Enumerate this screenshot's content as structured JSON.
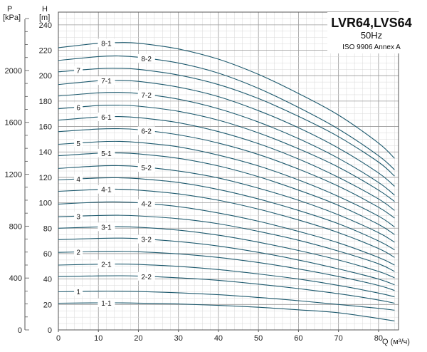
{
  "chart_data": {
    "type": "line",
    "title": "LVR64,LVS64",
    "subtitle": "50Hz",
    "standard": "ISO 9906 Annex A",
    "xlabel": "Q (м³/ч)",
    "ylabel": "H [m]",
    "ylabel_unit": "[m]",
    "ylabel_letter": "H",
    "y2label": "P [kPa]",
    "y2label_unit": "[kPa]",
    "y2label_letter": "P",
    "xlim": [
      0,
      85
    ],
    "ylim": [
      0,
      250
    ],
    "y2lim": [
      0,
      2450
    ],
    "grid": true,
    "x_ticks": [
      "0",
      "10",
      "20",
      "30",
      "40",
      "50",
      "60",
      "70",
      "80"
    ],
    "y_ticks": [
      "0",
      "20",
      "40",
      "60",
      "80",
      "100",
      "120",
      "140",
      "160",
      "180",
      "200",
      "220",
      "240"
    ],
    "y2_ticks": [
      "0",
      "400",
      "800",
      "1200",
      "1600",
      "2000"
    ],
    "series": [
      {
        "name": "8-1",
        "label_x": 12,
        "x": [
          0,
          10,
          15,
          20,
          30,
          40,
          50,
          60,
          70,
          80,
          84
        ],
        "y": [
          222,
          225.5,
          226,
          225.5,
          221,
          213,
          201,
          186,
          169,
          147,
          135
        ]
      },
      {
        "name": "8-2",
        "label_x": 22,
        "x": [
          0,
          10,
          15,
          20,
          30,
          40,
          50,
          60,
          70,
          80,
          84
        ],
        "y": [
          212,
          215,
          215.5,
          214.5,
          210,
          202,
          190,
          175,
          158,
          137,
          126
        ]
      },
      {
        "name": "7",
        "label_x": 5,
        "x": [
          0,
          10,
          15,
          20,
          30,
          40,
          50,
          60,
          70,
          80,
          84
        ],
        "y": [
          203,
          205.5,
          205.8,
          205,
          200.5,
          193,
          182,
          168,
          152,
          132,
          121
        ]
      },
      {
        "name": "7-1",
        "label_x": 12,
        "x": [
          0,
          10,
          15,
          20,
          30,
          40,
          50,
          60,
          70,
          80,
          84
        ],
        "y": [
          193,
          196,
          196.3,
          195.5,
          191,
          183.5,
          172.5,
          159,
          143,
          123.5,
          113
        ]
      },
      {
        "name": "7-2",
        "label_x": 22,
        "x": [
          0,
          10,
          15,
          20,
          30,
          40,
          50,
          60,
          70,
          80,
          84
        ],
        "y": [
          184,
          186.5,
          186.8,
          186,
          181.5,
          174,
          163.5,
          150.5,
          135,
          116,
          106
        ]
      },
      {
        "name": "6",
        "label_x": 5,
        "x": [
          0,
          10,
          15,
          20,
          30,
          40,
          50,
          60,
          70,
          80,
          84
        ],
        "y": [
          174,
          176.5,
          176.8,
          176,
          172,
          165,
          155,
          142.5,
          128,
          110,
          101
        ]
      },
      {
        "name": "6-1",
        "label_x": 12,
        "x": [
          0,
          10,
          15,
          20,
          30,
          40,
          50,
          60,
          70,
          80,
          84
        ],
        "y": [
          165,
          167.5,
          167.8,
          167,
          163,
          156,
          146.5,
          134.5,
          120,
          103,
          94
        ]
      },
      {
        "name": "6-2",
        "label_x": 22,
        "x": [
          0,
          10,
          15,
          20,
          30,
          40,
          50,
          60,
          70,
          80,
          84
        ],
        "y": [
          156,
          158,
          158.3,
          157.5,
          153.5,
          147,
          138,
          126.5,
          113,
          96.5,
          88
        ]
      },
      {
        "name": "5",
        "label_x": 5,
        "x": [
          0,
          10,
          15,
          20,
          30,
          40,
          50,
          60,
          70,
          80,
          84
        ],
        "y": [
          146,
          148,
          148.3,
          147.5,
          144,
          137.5,
          129,
          118,
          105,
          89.5,
          81
        ]
      },
      {
        "name": "5-1",
        "label_x": 12,
        "x": [
          0,
          10,
          15,
          20,
          30,
          40,
          50,
          60,
          70,
          80,
          84
        ],
        "y": [
          137,
          139,
          139.2,
          138.5,
          135,
          129,
          120.5,
          110,
          98,
          83,
          75
        ]
      },
      {
        "name": "5-2",
        "label_x": 22,
        "x": [
          0,
          10,
          15,
          20,
          30,
          40,
          50,
          60,
          70,
          80,
          84
        ],
        "y": [
          127,
          129,
          129.2,
          128.5,
          125,
          119.5,
          111.5,
          102,
          90.5,
          76.5,
          69
        ]
      },
      {
        "name": "4",
        "label_x": 5,
        "x": [
          0,
          10,
          15,
          20,
          30,
          40,
          50,
          60,
          70,
          80,
          84
        ],
        "y": [
          118,
          119.5,
          119.7,
          119,
          116,
          110.5,
          103,
          94,
          83.5,
          70,
          63
        ]
      },
      {
        "name": "4-1",
        "label_x": 12,
        "x": [
          0,
          10,
          15,
          20,
          30,
          40,
          50,
          60,
          70,
          80,
          84
        ],
        "y": [
          109,
          110.5,
          110.7,
          110,
          107,
          102,
          95,
          86.5,
          76.5,
          64,
          57
        ]
      },
      {
        "name": "4-2",
        "label_x": 22,
        "x": [
          0,
          10,
          15,
          20,
          30,
          40,
          50,
          60,
          70,
          80,
          84
        ],
        "y": [
          99,
          100.5,
          100.7,
          100,
          97,
          92,
          85.5,
          77.5,
          68.5,
          57,
          51
        ]
      },
      {
        "name": "3",
        "label_x": 5,
        "x": [
          0,
          10,
          15,
          20,
          30,
          40,
          50,
          60,
          70,
          80,
          84
        ],
        "y": [
          89,
          90,
          90.2,
          89.7,
          87.5,
          83.5,
          77.5,
          70.5,
          62,
          52,
          46
        ]
      },
      {
        "name": "3-1",
        "label_x": 12,
        "x": [
          0,
          10,
          15,
          20,
          30,
          40,
          50,
          60,
          70,
          80,
          84
        ],
        "y": [
          80,
          81,
          81.2,
          80.8,
          78.5,
          74.5,
          69,
          62.5,
          55,
          46,
          41
        ]
      },
      {
        "name": "3-2",
        "label_x": 22,
        "x": [
          0,
          10,
          15,
          20,
          30,
          40,
          50,
          60,
          70,
          80,
          84
        ],
        "y": [
          71,
          72,
          72.2,
          71.8,
          69.5,
          66,
          61,
          55,
          48,
          40,
          35.5
        ]
      },
      {
        "name": "2",
        "label_x": 5,
        "x": [
          0,
          10,
          15,
          20,
          30,
          40,
          50,
          60,
          70,
          80,
          84
        ],
        "y": [
          61,
          61.7,
          61.8,
          61.5,
          59.8,
          57,
          53,
          48,
          42,
          35,
          31
        ]
      },
      {
        "name": "2-1",
        "label_x": 12,
        "x": [
          0,
          10,
          15,
          20,
          30,
          40,
          50,
          60,
          70,
          80,
          84
        ],
        "y": [
          51,
          51.7,
          51.8,
          51.5,
          50,
          47.5,
          44,
          40,
          35,
          29,
          26
        ]
      },
      {
        "name": "2-2",
        "label_x": 22,
        "x": [
          0,
          10,
          15,
          20,
          30,
          40,
          50,
          60,
          70,
          80,
          84
        ],
        "y": [
          42,
          42.5,
          42.6,
          42.4,
          41,
          39,
          36,
          32.5,
          28.5,
          23.5,
          21
        ]
      },
      {
        "name": "1",
        "label_x": 5,
        "x": [
          0,
          10,
          15,
          20,
          30,
          40,
          50,
          60,
          70,
          80,
          84
        ],
        "y": [
          30,
          30.5,
          30.5,
          30.2,
          29.2,
          27.7,
          25.5,
          23,
          20,
          17,
          15.5
        ]
      },
      {
        "name": "1-1",
        "label_x": 12,
        "x": [
          0,
          10,
          15,
          20,
          30,
          40,
          50,
          60,
          70,
          80,
          84
        ],
        "y": [
          21,
          21.3,
          21.3,
          21.1,
          20.4,
          19.3,
          17.8,
          15.8,
          13.5,
          9,
          7
        ]
      }
    ],
    "line_color": "#1e5a6e"
  }
}
